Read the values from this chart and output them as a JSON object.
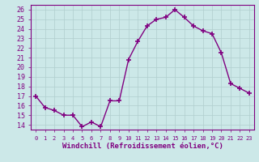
{
  "x": [
    0,
    1,
    2,
    3,
    4,
    5,
    6,
    7,
    8,
    9,
    10,
    11,
    12,
    13,
    14,
    15,
    16,
    17,
    18,
    19,
    20,
    21,
    22,
    23
  ],
  "y": [
    17.0,
    15.8,
    15.5,
    15.0,
    15.0,
    13.8,
    14.3,
    13.8,
    16.5,
    16.5,
    20.8,
    22.7,
    24.3,
    25.0,
    25.2,
    26.0,
    25.2,
    24.3,
    23.8,
    23.5,
    21.5,
    18.3,
    17.8,
    17.3
  ],
  "line_color": "#800080",
  "marker": "+",
  "marker_size": 4,
  "marker_lw": 1.2,
  "bg_color": "#cce8e8",
  "grid_color": "#b0cece",
  "xlabel": "Windchill (Refroidissement éolien,°C)",
  "xlabel_fontsize": 6.5,
  "ylim": [
    13.5,
    26.5
  ],
  "yticks": [
    14,
    15,
    16,
    17,
    18,
    19,
    20,
    21,
    22,
    23,
    24,
    25,
    26
  ],
  "xticks": [
    0,
    1,
    2,
    3,
    4,
    5,
    6,
    7,
    8,
    9,
    10,
    11,
    12,
    13,
    14,
    15,
    16,
    17,
    18,
    19,
    20,
    21,
    22,
    23
  ],
  "ytick_fontsize": 6,
  "xtick_fontsize": 5,
  "spine_color": "#800080",
  "line_width": 1.0,
  "plot_bg_color": "#cce8e8"
}
